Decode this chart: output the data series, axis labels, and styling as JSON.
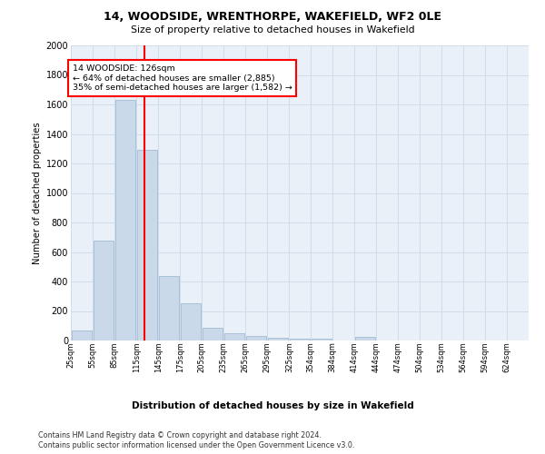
{
  "title1": "14, WOODSIDE, WRENTHORPE, WAKEFIELD, WF2 0LE",
  "title2": "Size of property relative to detached houses in Wakefield",
  "xlabel": "Distribution of detached houses by size in Wakefield",
  "ylabel": "Number of detached properties",
  "bar_color": "#c9d9ea",
  "bar_edge_color": "#a0bcd4",
  "grid_color": "#d0dce8",
  "plot_bg_color": "#eaf0f8",
  "annotation_text": "14 WOODSIDE: 126sqm\n← 64% of detached houses are smaller (2,885)\n35% of semi-detached houses are larger (1,582) →",
  "red_line_x": 126,
  "categories": [
    "25sqm",
    "55sqm",
    "85sqm",
    "115sqm",
    "145sqm",
    "175sqm",
    "205sqm",
    "235sqm",
    "265sqm",
    "295sqm",
    "325sqm",
    "354sqm",
    "384sqm",
    "414sqm",
    "444sqm",
    "474sqm",
    "504sqm",
    "534sqm",
    "564sqm",
    "594sqm",
    "624sqm"
  ],
  "bin_edges": [
    25,
    55,
    85,
    115,
    145,
    175,
    205,
    235,
    265,
    295,
    325,
    354,
    384,
    414,
    444,
    474,
    504,
    534,
    564,
    594,
    624,
    654
  ],
  "values": [
    70,
    680,
    1630,
    1290,
    440,
    250,
    85,
    50,
    30,
    20,
    15,
    10,
    0,
    25,
    0,
    0,
    0,
    0,
    0,
    0,
    0
  ],
  "ylim": [
    0,
    2000
  ],
  "yticks": [
    0,
    200,
    400,
    600,
    800,
    1000,
    1200,
    1400,
    1600,
    1800,
    2000
  ],
  "footnote1": "Contains HM Land Registry data © Crown copyright and database right 2024.",
  "footnote2": "Contains public sector information licensed under the Open Government Licence v3.0."
}
